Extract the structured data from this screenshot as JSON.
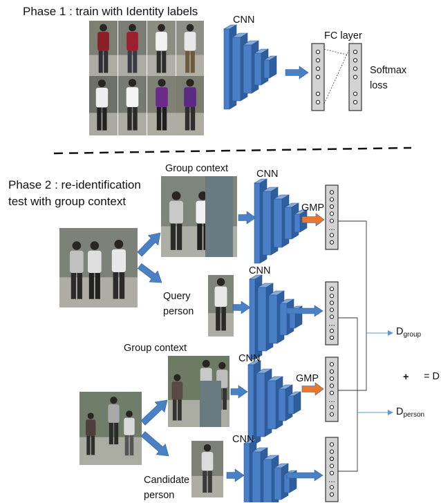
{
  "phase1": {
    "title": "Phase 1 : train with Identity labels",
    "cnn_label": "CNN",
    "fc_label": "FC layer",
    "loss_label": "Softmax\nloss",
    "photo_icon": "pedestrian-photo"
  },
  "phase2": {
    "title": "Phase 2 : re-identification\ntest with group context",
    "group_context_label": "Group context",
    "query_label": "Query\nperson",
    "candidate_label": "Candidate\nperson",
    "cnn_label": "CNN",
    "gmp_label": "GMP",
    "pooled_feature_ellipsis": "...",
    "output": {
      "d_group_main": "D",
      "d_group_sub": "group",
      "d_person_main": "D",
      "d_person_sub": "person",
      "plus": "+",
      "eq_total": "= D"
    }
  },
  "colors": {
    "cnn_front": "#4a7fc8",
    "cnn_side": "#2e5e9e",
    "cnn_top": "#86acdc",
    "arrow_blue": "#4a80c4",
    "gmp_arrow": "#e9782c",
    "feature_fill": "#d3d3d3",
    "mask": "#697a80"
  }
}
